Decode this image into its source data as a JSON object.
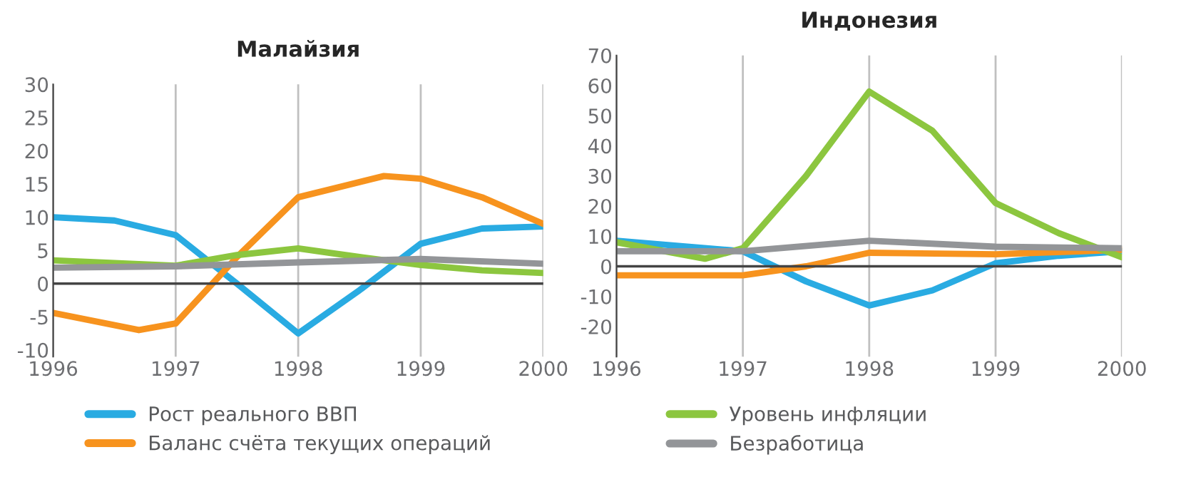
{
  "chart_data": [
    {
      "type": "line",
      "title": "Малайзия",
      "xlim": [
        1996,
        2000
      ],
      "xticks": [
        1996,
        1997,
        1998,
        1999,
        2000
      ],
      "ylim": [
        -11,
        30
      ],
      "yticks": [
        -10,
        -5,
        0,
        5,
        10,
        15,
        20,
        25,
        30
      ],
      "grid": "x",
      "legend": "bottom",
      "ref_lines": [
        {
          "axis": "y",
          "value": 0,
          "color": "#444444"
        }
      ],
      "series": [
        {
          "name": "Рост реального ВВП",
          "color": "#29abe2",
          "x": [
            1996,
            1996.5,
            1997,
            1997.5,
            1998,
            1998.5,
            1999,
            1999.5,
            2000
          ],
          "values": [
            10,
            9.5,
            7.3,
            0,
            -7.5,
            -1,
            6,
            8.3,
            8.6
          ]
        },
        {
          "name": "Баланс счёта текущих операций",
          "color": "#f7931e",
          "x": [
            1996,
            1996.7,
            1997,
            1997.5,
            1998,
            1998.7,
            1999,
            1999.5,
            2000
          ],
          "values": [
            -4.4,
            -7,
            -6,
            4,
            13,
            16.2,
            15.8,
            13,
            9
          ]
        },
        {
          "name": "Уровень инфляции",
          "color": "#8cc63f",
          "x": [
            1996,
            1997,
            1997.5,
            1998,
            1998.5,
            1999,
            1999.5,
            2000
          ],
          "values": [
            3.5,
            2.7,
            4.3,
            5.3,
            4,
            2.8,
            2,
            1.6
          ]
        },
        {
          "name": "Безработица",
          "color": "#939598",
          "x": [
            1996,
            1997,
            1998,
            1999,
            2000
          ],
          "values": [
            2.4,
            2.6,
            3.2,
            3.7,
            3
          ]
        }
      ]
    },
    {
      "type": "line",
      "title": "Индонезия",
      "xlim": [
        1996,
        2000
      ],
      "xticks": [
        1996,
        1997,
        1998,
        1999,
        2000
      ],
      "ylim": [
        -30,
        70
      ],
      "yticks": [
        -20,
        -10,
        0,
        10,
        20,
        30,
        40,
        50,
        60,
        70
      ],
      "grid": "x",
      "legend": "bottom",
      "ref_lines": [
        {
          "axis": "y",
          "value": 0,
          "color": "#444444"
        }
      ],
      "series": [
        {
          "name": "Рост реального ВВП",
          "color": "#29abe2",
          "x": [
            1996,
            1997,
            1997.5,
            1998,
            1998.5,
            1999,
            1999.5,
            2000
          ],
          "values": [
            8.5,
            5,
            -5,
            -13,
            -8,
            1,
            3.5,
            5
          ]
        },
        {
          "name": "Баланс счёта текущих операций",
          "color": "#f7931e",
          "x": [
            1996,
            1997,
            1997.5,
            1998,
            1999,
            2000
          ],
          "values": [
            -3,
            -3,
            0,
            4.5,
            4,
            5.5
          ]
        },
        {
          "name": "Уровень инфляции",
          "color": "#8cc63f",
          "x": [
            1996,
            1996.7,
            1997,
            1997.5,
            1998,
            1998.5,
            1999,
            1999.5,
            2000
          ],
          "values": [
            8,
            2.5,
            6,
            30,
            58,
            45,
            21,
            11,
            3
          ]
        },
        {
          "name": "Безработица",
          "color": "#939598",
          "x": [
            1996,
            1997,
            1998,
            1999,
            2000
          ],
          "values": [
            5,
            5,
            8.5,
            6.5,
            6
          ]
        }
      ]
    }
  ]
}
